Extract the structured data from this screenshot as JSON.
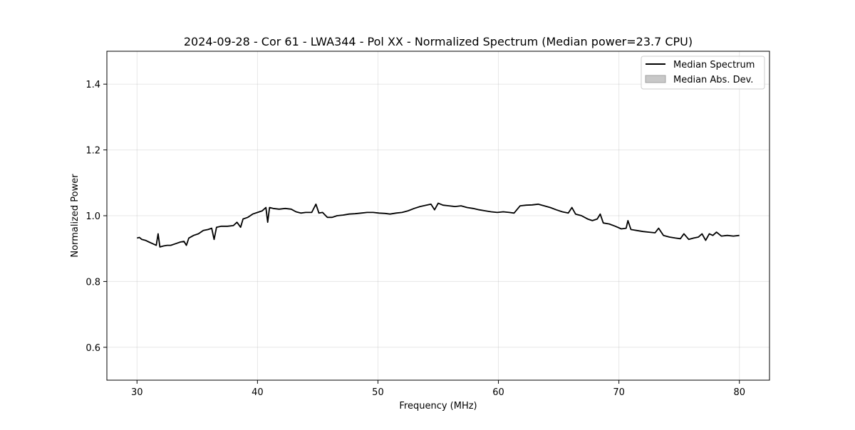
{
  "chart_data": {
    "type": "line",
    "title": "2024-09-28 - Cor 61 - LWA344 - Pol XX - Normalized Spectrum (Median power=23.7 CPU)",
    "xlabel": "Frequency (MHz)",
    "ylabel": "Normalized Power",
    "xlim": [
      27.5,
      82.5
    ],
    "ylim": [
      0.5,
      1.5
    ],
    "xticks": [
      30,
      40,
      50,
      60,
      70,
      80
    ],
    "yticks": [
      0.6,
      0.8,
      1.0,
      1.2,
      1.4
    ],
    "xtick_labels": [
      "30",
      "40",
      "50",
      "60",
      "70",
      "80"
    ],
    "ytick_labels": [
      "0.6",
      "0.8",
      "1.0",
      "1.2",
      "1.4"
    ],
    "grid": true,
    "legend_position": "top-right",
    "legend": [
      {
        "label": "Median Spectrum",
        "kind": "line",
        "color": "#000000"
      },
      {
        "label": "Median Abs. Dev.",
        "kind": "patch",
        "color": "#c8c8c8"
      }
    ],
    "series": [
      {
        "name": "Median Spectrum",
        "color": "#000000",
        "x": [
          30.0,
          30.2,
          30.4,
          30.7,
          31.0,
          31.3,
          31.6,
          31.75,
          31.9,
          32.2,
          32.5,
          32.8,
          33.2,
          33.6,
          33.9,
          34.1,
          34.3,
          34.7,
          35.1,
          35.5,
          35.9,
          36.2,
          36.4,
          36.6,
          37.0,
          37.5,
          38.0,
          38.3,
          38.6,
          38.8,
          39.2,
          39.6,
          40.0,
          40.4,
          40.7,
          40.85,
          41.0,
          41.3,
          41.8,
          42.3,
          42.8,
          43.2,
          43.6,
          44.0,
          44.5,
          44.85,
          45.1,
          45.4,
          45.8,
          46.2,
          46.6,
          47.1,
          47.6,
          48.1,
          48.6,
          49.1,
          49.6,
          50.1,
          50.6,
          51.0,
          51.5,
          52.0,
          52.5,
          53.0,
          53.5,
          54.0,
          54.4,
          54.7,
          55.0,
          55.4,
          55.9,
          56.4,
          56.9,
          57.4,
          57.9,
          58.4,
          58.9,
          59.4,
          59.9,
          60.4,
          60.9,
          61.3,
          61.8,
          62.3,
          62.8,
          63.3,
          63.8,
          64.3,
          64.8,
          65.3,
          65.8,
          66.1,
          66.4,
          66.9,
          67.4,
          67.8,
          68.2,
          68.45,
          68.7,
          69.2,
          69.7,
          70.2,
          70.6,
          70.75,
          71.0,
          71.5,
          72.0,
          72.5,
          73.0,
          73.3,
          73.7,
          74.2,
          74.7,
          75.1,
          75.4,
          75.8,
          76.2,
          76.6,
          76.9,
          77.2,
          77.5,
          77.8,
          78.1,
          78.5,
          79.0,
          79.5,
          80.0
        ],
        "y": [
          0.932,
          0.934,
          0.928,
          0.925,
          0.92,
          0.915,
          0.91,
          0.945,
          0.905,
          0.908,
          0.91,
          0.91,
          0.915,
          0.92,
          0.922,
          0.91,
          0.932,
          0.94,
          0.945,
          0.955,
          0.958,
          0.962,
          0.928,
          0.965,
          0.968,
          0.968,
          0.97,
          0.98,
          0.965,
          0.99,
          0.995,
          1.005,
          1.01,
          1.015,
          1.025,
          0.98,
          1.025,
          1.022,
          1.02,
          1.022,
          1.02,
          1.012,
          1.008,
          1.01,
          1.01,
          1.035,
          1.008,
          1.01,
          0.995,
          0.995,
          1.0,
          1.002,
          1.005,
          1.006,
          1.008,
          1.01,
          1.01,
          1.008,
          1.007,
          1.005,
          1.008,
          1.01,
          1.015,
          1.022,
          1.028,
          1.032,
          1.035,
          1.018,
          1.038,
          1.032,
          1.03,
          1.028,
          1.03,
          1.025,
          1.022,
          1.018,
          1.015,
          1.012,
          1.01,
          1.012,
          1.01,
          1.008,
          1.03,
          1.032,
          1.033,
          1.035,
          1.03,
          1.025,
          1.018,
          1.012,
          1.008,
          1.025,
          1.005,
          1.0,
          0.99,
          0.985,
          0.99,
          1.005,
          0.978,
          0.975,
          0.968,
          0.96,
          0.962,
          0.985,
          0.958,
          0.955,
          0.952,
          0.95,
          0.948,
          0.962,
          0.94,
          0.935,
          0.932,
          0.93,
          0.945,
          0.928,
          0.932,
          0.935,
          0.945,
          0.925,
          0.945,
          0.94,
          0.95,
          0.938,
          0.94,
          0.938,
          0.94
        ]
      }
    ]
  }
}
